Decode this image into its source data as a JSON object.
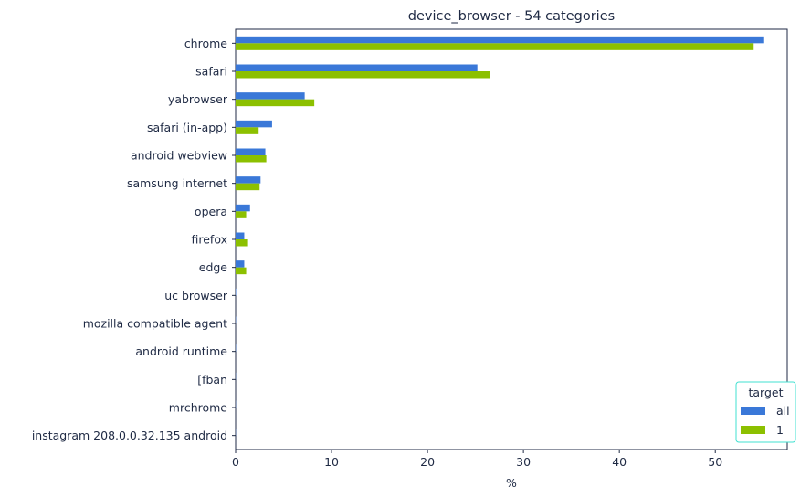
{
  "chart_data": {
    "type": "bar",
    "orientation": "horizontal",
    "title": "device_browser - 54 categories",
    "xlabel": "%",
    "ylabel": "",
    "xlim": [
      0,
      57.5
    ],
    "xticks": [
      0,
      10,
      20,
      30,
      40,
      50
    ],
    "grid": false,
    "categories": [
      "chrome",
      "safari",
      "yabrowser",
      "safari (in-app)",
      "android webview",
      "samsung internet",
      "opera",
      "firefox",
      "edge",
      "uc browser",
      "mozilla compatible agent",
      "android runtime",
      "[fban",
      "mrchrome",
      "instagram 208.0.0.32.135 android"
    ],
    "series": [
      {
        "name": "all",
        "color": "#3a78d8",
        "values": [
          55.0,
          25.2,
          7.2,
          3.8,
          3.1,
          2.6,
          1.5,
          0.9,
          0.9,
          0.05,
          0.03,
          0.03,
          0.02,
          0.02,
          0.02
        ]
      },
      {
        "name": "1",
        "color": "#8cc000",
        "values": [
          54.0,
          26.5,
          8.2,
          2.4,
          3.2,
          2.5,
          1.1,
          1.2,
          1.1,
          0.0,
          0.0,
          0.0,
          0.0,
          0.0,
          0.0
        ]
      }
    ],
    "legend": {
      "title": "target",
      "position": "bottom-right",
      "border_color": "#40e0d0"
    }
  }
}
